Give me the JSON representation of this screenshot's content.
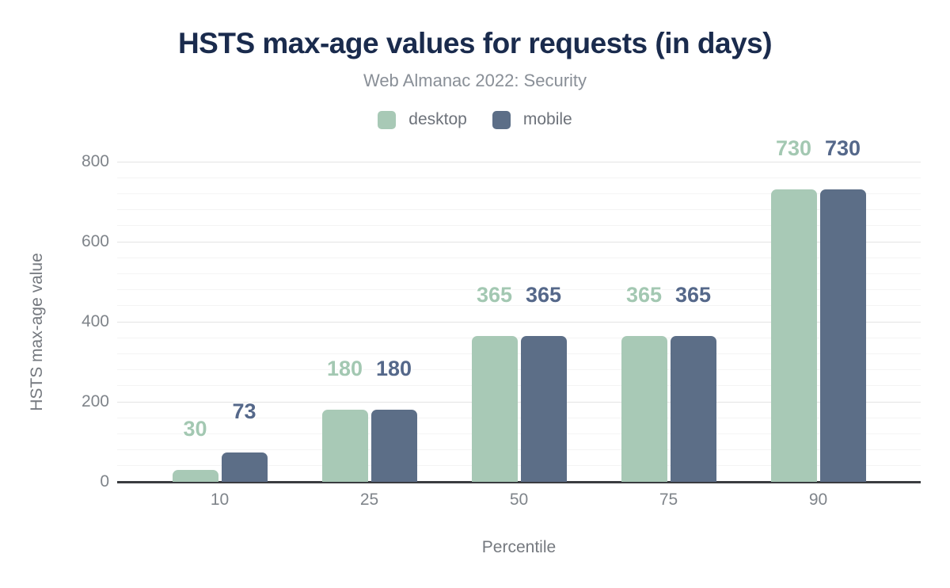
{
  "chart_data": {
    "type": "bar",
    "title": "HSTS max-age values for requests (in days)",
    "subtitle": "Web Almanac 2022: Security",
    "categories": [
      "10",
      "25",
      "50",
      "75",
      "90"
    ],
    "series": [
      {
        "name": "desktop",
        "color": "#a8c9b6",
        "label_color": "#a3c8b2",
        "values": [
          30,
          180,
          365,
          365,
          730
        ]
      },
      {
        "name": "mobile",
        "color": "#5c6e87",
        "label_color": "#55688a",
        "values": [
          73,
          180,
          365,
          365,
          730
        ]
      }
    ],
    "xlabel": "Percentile",
    "ylabel": "HSTS max-age value",
    "ylim": [
      0,
      800
    ],
    "yticks": [
      0,
      200,
      400,
      600,
      800
    ],
    "minor_grid_step": 40,
    "grid": true,
    "legend_position": "top",
    "bar_value_labels": true
  },
  "colors": {
    "title": "#1a2b4d",
    "subtitle": "#898f97",
    "legend_text": "#6d727a",
    "axis_text": "#7f848a",
    "axis_title_text": "#75797f",
    "axis_line": "#3a3c40",
    "grid_major": "#e4e4e4",
    "grid_minor": "#f4f4f4",
    "background": "#ffffff"
  }
}
